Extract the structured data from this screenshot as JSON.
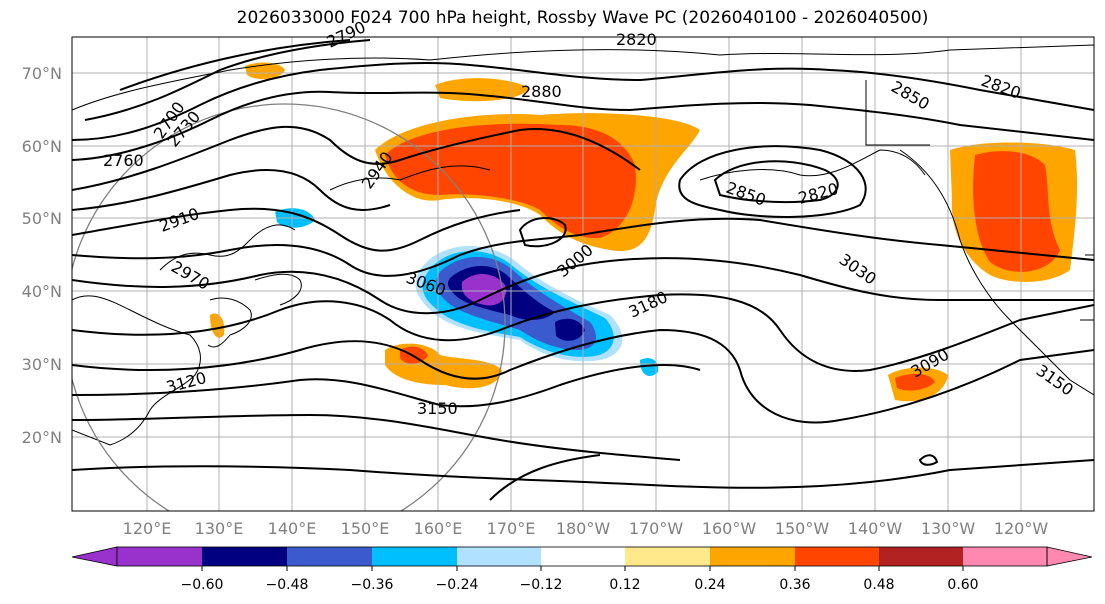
{
  "title": "2026033000 F024 700 hPa height, Rossby Wave PC (2026040100 - 2026040500)",
  "map": {
    "lat_labels": [
      "70°N",
      "60°N",
      "50°N",
      "40°N",
      "30°N",
      "20°N"
    ],
    "lon_labels": [
      "120°E",
      "130°E",
      "140°E",
      "150°E",
      "160°E",
      "170°E",
      "180°W",
      "170°W",
      "160°W",
      "150°W",
      "140°W",
      "130°W",
      "120°W"
    ],
    "contour_labels": [
      "2820",
      "2790",
      "2880",
      "2850",
      "2820",
      "2700",
      "2730",
      "2760",
      "2940",
      "2850",
      "2820",
      "2910",
      "2970",
      "3000",
      "3030",
      "3060",
      "3180",
      "3120",
      "3090",
      "3150",
      "3150"
    ]
  },
  "colorbar": {
    "tick_labels": [
      "−0.60",
      "−0.48",
      "−0.36",
      "−0.24",
      "−0.12",
      "0.12",
      "0.24",
      "0.36",
      "0.48",
      "0.60"
    ],
    "colors": [
      "#9932CC",
      "#000080",
      "#3A5ACD",
      "#00BFFF",
      "#B0E2FF",
      "#FFFFFF",
      "#FFE98A",
      "#FFA500",
      "#FF4500",
      "#B22222",
      "#FF88B0"
    ]
  }
}
